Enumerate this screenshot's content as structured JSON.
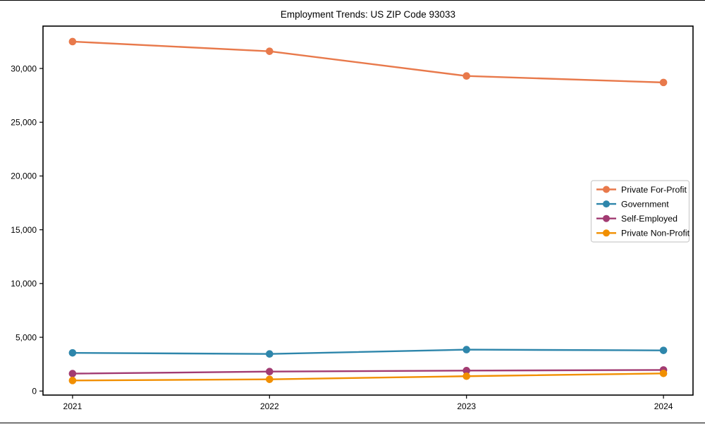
{
  "chart_data": {
    "type": "line",
    "title": "Employment Trends: US ZIP Code 93033",
    "x": [
      2021,
      2022,
      2023,
      2024
    ],
    "x_tick_labels": [
      "2021",
      "2022",
      "2023",
      "2024"
    ],
    "series": [
      {
        "name": "Private For-Profit",
        "color": "#E8794B",
        "values": [
          32500,
          31600,
          29300,
          28700
        ]
      },
      {
        "name": "Government",
        "color": "#2E86AB",
        "values": [
          3550,
          3450,
          3850,
          3780
        ]
      },
      {
        "name": "Self-Employed",
        "color": "#A23B72",
        "values": [
          1620,
          1810,
          1900,
          1960
        ]
      },
      {
        "name": "Private Non-Profit",
        "color": "#F18F01",
        "values": [
          980,
          1090,
          1380,
          1640
        ]
      }
    ],
    "xlabel": "",
    "ylabel": "",
    "yticks": [
      0,
      5000,
      10000,
      15000,
      20000,
      25000,
      30000
    ],
    "ytick_labels": [
      "0",
      "5,000",
      "10,000",
      "15,000",
      "20,000",
      "25,000",
      "30,000"
    ],
    "ylim": [
      -375,
      33940
    ],
    "xlim": [
      2020.85,
      2024.15
    ],
    "grid": false,
    "marker": "circle",
    "legend": {
      "position": "center-right",
      "border_color": "#cccccc",
      "background": "#ffffff"
    },
    "axis_color": "#000000",
    "background_color": "#ffffff"
  }
}
